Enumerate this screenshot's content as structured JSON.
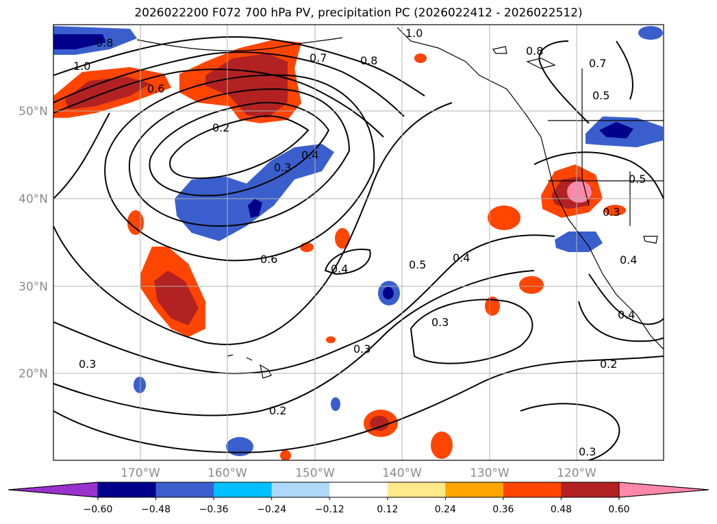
{
  "title": "2026022200 F072 700 hPa PV, precipitation PC (2026022412 - 2026022512)",
  "latitude_labels": [
    "50°N",
    "40°N",
    "30°N",
    "20°N"
  ],
  "longitude_labels": [
    "170°W",
    "160°W",
    "150°W",
    "140°W",
    "130°W",
    "120°W"
  ],
  "contour_labels": [
    "0.8",
    "1.0",
    "0.6",
    "0.7",
    "0.8",
    "1.0",
    "0.2",
    "0.3",
    "0.4",
    "0.6",
    "0.4",
    "0.5",
    "0.4",
    "0.3",
    "0.3",
    "0.2",
    "0.3",
    "0.8",
    "0.7",
    "0.5",
    "0.5",
    "0.3",
    "0.4",
    "0.4",
    "0.2",
    "0.3"
  ],
  "colorbar": {
    "tick_labels": [
      "−0.60",
      "−0.48",
      "−0.36",
      "−0.24",
      "−0.12",
      "0.12",
      "0.24",
      "0.36",
      "0.48",
      "0.60"
    ],
    "colors": [
      "#9932cc",
      "#00008b",
      "#3a5fcd",
      "#00bfff",
      "#add8f7",
      "#ffffff",
      "#ffe88a",
      "#ffa500",
      "#ff4500",
      "#b22222",
      "#ff88aa"
    ]
  },
  "shading_colors": {
    "neg_strong": "#00008b",
    "neg_mid": "#3a5fcd",
    "neg_light": "#00bfff",
    "pos_light": "#ffe88a",
    "pos_mid": "#ff4500",
    "pos_strong": "#b22222",
    "pos_max": "#ff88aa"
  }
}
